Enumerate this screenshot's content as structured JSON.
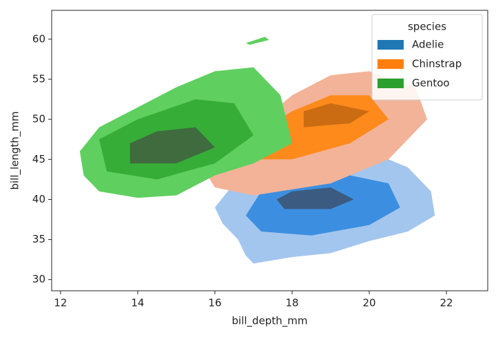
{
  "chart_data": {
    "type": "kde",
    "x_label": "bill_depth_mm",
    "y_label": "bill_length_mm",
    "xlim": [
      11.77,
      23.07
    ],
    "ylim": [
      28.6,
      63.6
    ],
    "xticks": [
      12,
      14,
      16,
      18,
      20,
      22
    ],
    "yticks": [
      30,
      35,
      40,
      45,
      50,
      55,
      60
    ],
    "legend_title": "species",
    "legend": "upper right",
    "series": [
      {
        "name": "Adelie",
        "color": "#1f77b4",
        "level_colors": [
          "#a3c6ee",
          "#3c8fe0",
          "#3b5b80"
        ],
        "levels": [
          {
            "x": [
              17.0,
              18.0,
              19.0,
              20.0,
              21.0,
              21.7,
              21.6,
              21.0,
              20.0,
              19.0,
              18.0,
              17.0,
              16.5,
              16.0,
              16.2,
              16.6,
              16.8
            ],
            "y": [
              32.0,
              32.8,
              33.3,
              34.8,
              36.0,
              38.0,
              41.0,
              44.0,
              46.0,
              45.8,
              45.0,
              44.0,
              42.0,
              39.0,
              37.0,
              35.0,
              33.0
            ]
          },
          {
            "x": [
              17.2,
              18.5,
              20.0,
              20.8,
              20.5,
              19.5,
              18.2,
              17.2,
              16.8
            ],
            "y": [
              36.0,
              35.5,
              36.8,
              39.0,
              42.0,
              43.0,
              42.5,
              41.0,
              38.0
            ]
          },
          {
            "x": [
              17.8,
              19.0,
              19.6,
              19.0,
              18.0,
              17.6
            ],
            "y": [
              38.8,
              38.8,
              40.0,
              41.5,
              41.0,
              40.0
            ]
          }
        ]
      },
      {
        "name": "Chinstrap",
        "color": "#ff7f0e",
        "level_colors": [
          "#f3b398",
          "#ff8a1c",
          "#cc6c12"
        ],
        "levels": [
          {
            "x": [
              16.0,
              17.0,
              19.0,
              20.5,
              21.5,
              21.2,
              20.0,
              19.0,
              18.0,
              17.0,
              16.0,
              15.8
            ],
            "y": [
              41.5,
              40.5,
              42.0,
              45.0,
              50.0,
              54.0,
              56.0,
              55.5,
              53.0,
              49.0,
              46.0,
              43.0
            ]
          },
          {
            "x": [
              17.0,
              18.0,
              19.5,
              20.5,
              20.0,
              19.0,
              18.0,
              17.0
            ],
            "y": [
              45.0,
              45.0,
              47.0,
              50.0,
              53.0,
              53.0,
              51.0,
              48.0
            ]
          },
          {
            "x": [
              18.3,
              19.5,
              20.0,
              19.0,
              18.3
            ],
            "y": [
              49.0,
              49.5,
              51.0,
              52.0,
              51.0
            ]
          }
        ]
      },
      {
        "name": "Gentoo",
        "color": "#2ca02c",
        "level_colors": [
          "#5fcf5f",
          "#36ad36",
          "#3f6b3f"
        ],
        "levels": [
          {
            "x": [
              12.6,
              13.0,
              14.0,
              15.0,
              16.0,
              17.0,
              18.0,
              17.7,
              17.0,
              16.0,
              15.0,
              14.0,
              13.0,
              12.5
            ],
            "y": [
              43.0,
              41.0,
              40.2,
              40.5,
              43.0,
              44.5,
              47.0,
              53.0,
              56.5,
              56.0,
              54.0,
              51.5,
              49.0,
              46.0
            ]
          },
          {
            "x": [
              13.2,
              14.5,
              16.0,
              17.0,
              16.5,
              15.5,
              14.0,
              13.0
            ],
            "y": [
              43.5,
              42.5,
              44.5,
              48.0,
              52.0,
              52.5,
              50.0,
              47.5
            ]
          },
          {
            "x": [
              13.8,
              15.0,
              16.0,
              15.5,
              14.5,
              13.8
            ],
            "y": [
              44.5,
              44.5,
              46.5,
              49.0,
              48.5,
              47.0
            ]
          },
          {
            "x": [
              16.8,
              17.3,
              17.4,
              16.9
            ],
            "y": [
              59.5,
              60.3,
              59.9,
              59.3
            ]
          }
        ]
      }
    ]
  }
}
